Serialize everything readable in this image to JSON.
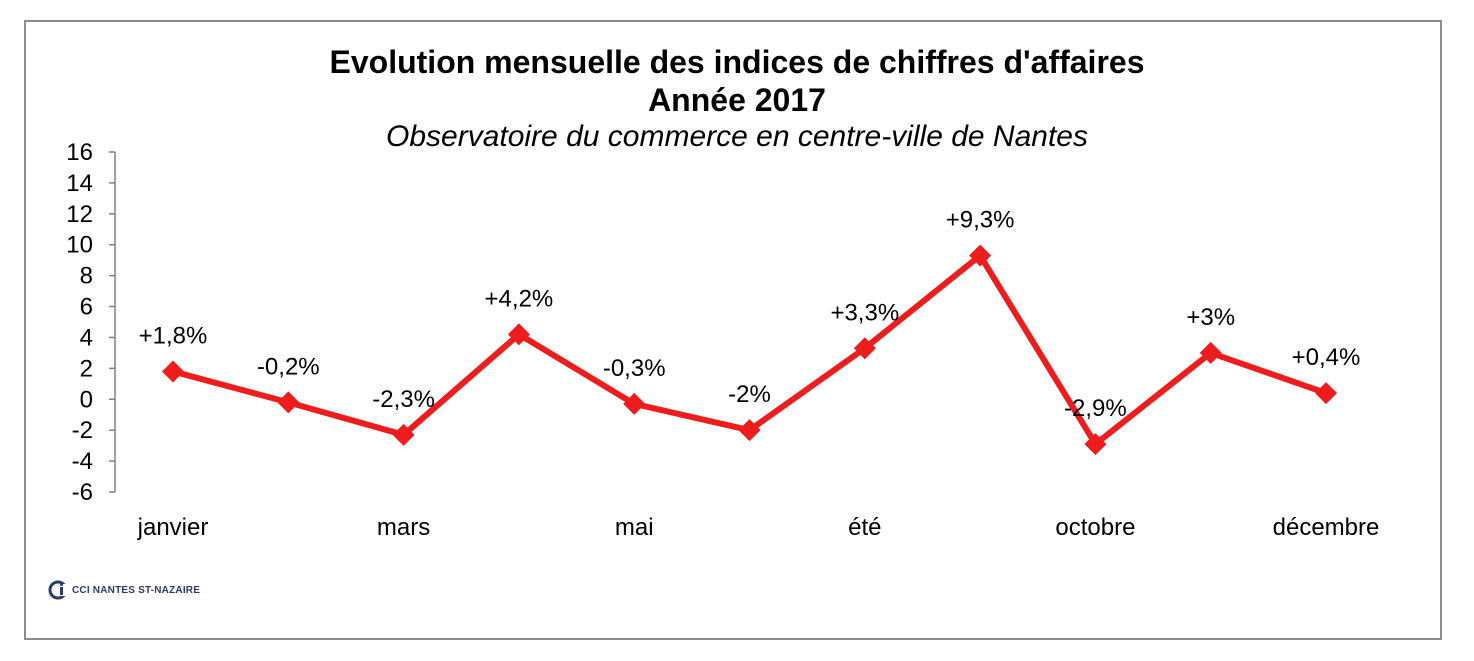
{
  "chart_data": {
    "type": "line",
    "title": "Evolution mensuelle des indices de chiffres d'affaires",
    "title_line2": "Année 2017",
    "subtitle": "Observatoire du commerce en centre-ville de Nantes",
    "xlabel": "",
    "ylabel": "",
    "x_labels_shown": [
      "janvier",
      "mars",
      "mai",
      "été",
      "octobre",
      "décembre"
    ],
    "tick_positions": [
      1,
      3,
      5,
      7,
      9,
      11
    ],
    "points": [
      {
        "x": 1,
        "y": 1.8,
        "label": "+1,8%"
      },
      {
        "x": 2,
        "y": -0.2,
        "label": "-0,2%"
      },
      {
        "x": 3,
        "y": -2.3,
        "label": "-2,3%"
      },
      {
        "x": 4,
        "y": 4.2,
        "label": "+4,2%"
      },
      {
        "x": 5,
        "y": -0.3,
        "label": "-0,3%"
      },
      {
        "x": 6,
        "y": -2,
        "label": "-2%"
      },
      {
        "x": 7,
        "y": 3.3,
        "label": "+3,3%"
      },
      {
        "x": 8,
        "y": 9.3,
        "label": "+9,3%"
      },
      {
        "x": 9,
        "y": -2.9,
        "label": "-2,9%"
      },
      {
        "x": 10,
        "y": 3,
        "label": "+3%"
      },
      {
        "x": 11,
        "y": 0.4,
        "label": "+0,4%"
      }
    ],
    "ylim": [
      -6,
      16
    ],
    "yticks": [
      16,
      14,
      12,
      10,
      8,
      6,
      4,
      2,
      0,
      -2,
      -4,
      -6
    ],
    "grid": false,
    "line_color": "#ee1c1c"
  },
  "logo": {
    "text": "CCI NANTES ST-NAZAIRE"
  }
}
